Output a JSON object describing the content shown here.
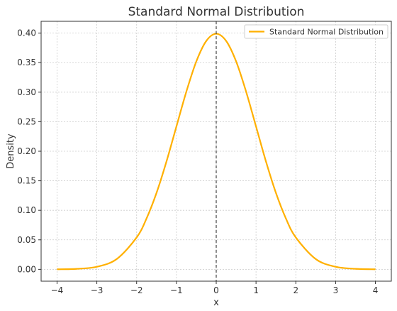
{
  "chart_data": {
    "type": "line",
    "title": "Standard Normal Distribution",
    "xlabel": "x",
    "ylabel": "Density",
    "xlim": [
      -4.4,
      4.4
    ],
    "ylim": [
      -0.02,
      0.42
    ],
    "grid": true,
    "legend_position": "top-right",
    "xticks": [
      -4,
      -3,
      -2,
      -1,
      0,
      1,
      2,
      3,
      4
    ],
    "xtick_labels": [
      "−4",
      "−3",
      "−2",
      "−1",
      "0",
      "1",
      "2",
      "3",
      "4"
    ],
    "yticks": [
      0.0,
      0.05,
      0.1,
      0.15,
      0.2,
      0.25,
      0.3,
      0.35,
      0.4
    ],
    "ytick_labels": [
      "0.00",
      "0.05",
      "0.10",
      "0.15",
      "0.20",
      "0.25",
      "0.30",
      "0.35",
      "0.40"
    ],
    "series": [
      {
        "name": "Standard Normal Distribution",
        "color": "#FFB000",
        "x": [
          -4.0,
          -3.5,
          -3.0,
          -2.5,
          -2.0,
          -1.75,
          -1.5,
          -1.25,
          -1.0,
          -0.75,
          -0.5,
          -0.25,
          0.0,
          0.25,
          0.5,
          0.75,
          1.0,
          1.25,
          1.5,
          1.75,
          2.0,
          2.5,
          3.0,
          3.5,
          4.0
        ],
        "values": [
          0.0001,
          0.0009,
          0.0044,
          0.0175,
          0.054,
          0.0863,
          0.1295,
          0.1826,
          0.242,
          0.3011,
          0.3521,
          0.3867,
          0.3989,
          0.3867,
          0.3521,
          0.3011,
          0.242,
          0.1826,
          0.1295,
          0.0863,
          0.054,
          0.0175,
          0.0044,
          0.0009,
          0.0001
        ]
      }
    ],
    "vline": {
      "x": 0,
      "style": "dashed",
      "color": "#333333"
    }
  }
}
